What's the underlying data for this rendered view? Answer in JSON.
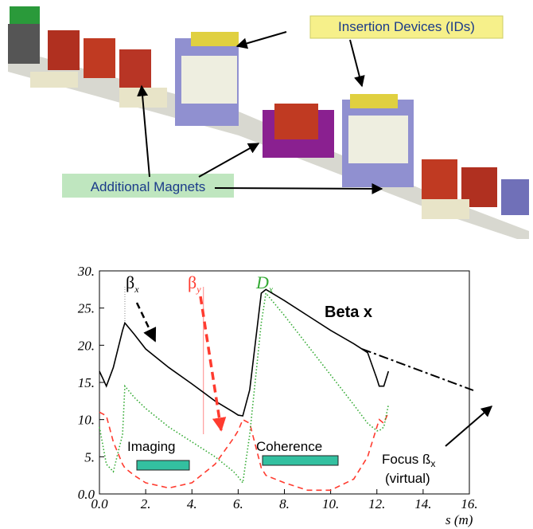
{
  "callouts": {
    "ids": "Insertion Devices (IDs)",
    "magnets": "Additional Magnets"
  },
  "chart_data": {
    "type": "line",
    "title": "Beta x",
    "x_label": "s (m)",
    "x": [
      0,
      0.3,
      0.6,
      1,
      1.1,
      1.5,
      2,
      3,
      4,
      5,
      5.8,
      6,
      6.2,
      6.5,
      7,
      7.2,
      8,
      9,
      10,
      11,
      11.6,
      12,
      12.1,
      12.3,
      12.5
    ],
    "series": [
      {
        "name": "β",
        "sub": "x",
        "color": "#000000",
        "style": "solid",
        "values": [
          16.5,
          14.5,
          17,
          22,
          23,
          21.5,
          19.5,
          17,
          14.8,
          12.5,
          11,
          10.6,
          10.5,
          14,
          27,
          27.5,
          26,
          24,
          22,
          20.2,
          19,
          15.5,
          14.5,
          14.5,
          16.5
        ]
      },
      {
        "name": "β",
        "sub": "y",
        "color": "#ff3b2f",
        "style": "dashed",
        "values": [
          11,
          10.5,
          7,
          4,
          3.5,
          2.5,
          1.5,
          0.8,
          1.5,
          4,
          7.5,
          8.5,
          10,
          9.5,
          3.5,
          2.5,
          1.5,
          0.5,
          0.5,
          2,
          5,
          9,
          10,
          9.5,
          11
        ]
      },
      {
        "name": "D",
        "sub": "x",
        "color": "#33aa33",
        "style": "dotted",
        "values": [
          9,
          4,
          3,
          8,
          14.5,
          13,
          11.5,
          9,
          7,
          5,
          3,
          2.3,
          1.5,
          8,
          23,
          27,
          24,
          20,
          16,
          12,
          9.5,
          8.5,
          8.5,
          9,
          12
        ]
      }
    ],
    "xlim": [
      0,
      16
    ],
    "xticks": [
      {
        "value": 0,
        "label": "0.0"
      },
      {
        "value": 2,
        "label": "2."
      },
      {
        "value": 4,
        "label": "4."
      },
      {
        "value": 6,
        "label": "6."
      },
      {
        "value": 8,
        "label": "8."
      },
      {
        "value": 10,
        "label": "10."
      },
      {
        "value": 12,
        "label": "12."
      },
      {
        "value": 14,
        "label": "14."
      },
      {
        "value": 16,
        "label": "16."
      }
    ],
    "ylim": [
      0,
      30
    ],
    "yticks": [
      {
        "value": 0,
        "label": "0.0"
      },
      {
        "value": 5,
        "label": "5."
      },
      {
        "value": 10,
        "label": "10."
      },
      {
        "value": 15,
        "label": "15."
      },
      {
        "value": 20,
        "label": "20."
      },
      {
        "value": 25,
        "label": "25."
      },
      {
        "value": 30,
        "label": "30."
      }
    ],
    "annotations": {
      "imaging": "Imaging",
      "coherence": "Coherence",
      "focus": "Focus ß",
      "focus_sub": "x",
      "virtual": "(virtual)"
    }
  }
}
